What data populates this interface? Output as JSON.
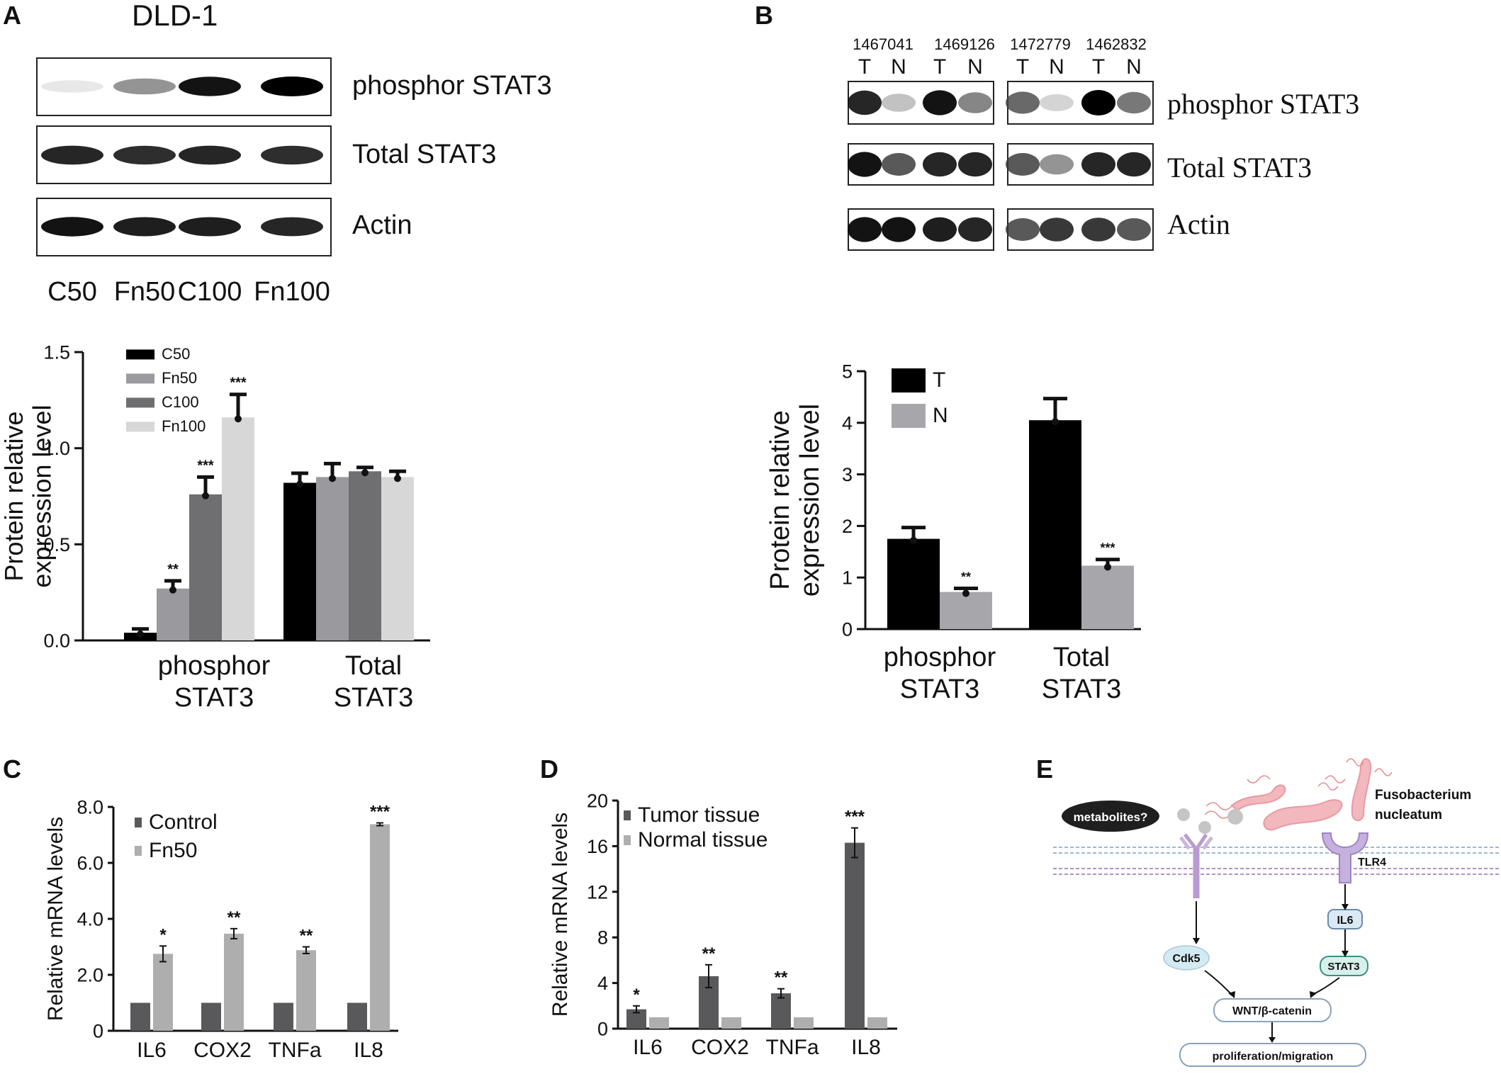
{
  "panels": {
    "A": {
      "label": "A",
      "cell_line": "DLD-1",
      "blot_rows": [
        "phosphor STAT3",
        "Total STAT3",
        "Actin"
      ],
      "lanes": [
        "C50",
        "Fn50",
        "C100",
        "Fn100"
      ],
      "band_intensity": [
        [
          0.12,
          0.55,
          0.95,
          1.0
        ],
        [
          0.9,
          0.88,
          0.9,
          0.88
        ],
        [
          0.95,
          0.92,
          0.92,
          0.9
        ]
      ]
    },
    "B": {
      "label": "B",
      "sample_ids": [
        "1467041",
        "1469126",
        "1472779",
        "1462832"
      ],
      "lane_labels": [
        "T",
        "N",
        "T",
        "N",
        "T",
        "N",
        "T",
        "N"
      ],
      "blot_rows": [
        "phosphor STAT3",
        "Total STAT3",
        "Actin"
      ],
      "band_intensity": [
        [
          0.9,
          0.35,
          0.95,
          0.6,
          0.7,
          0.25,
          1.0,
          0.65
        ],
        [
          0.95,
          0.75,
          0.9,
          0.9,
          0.75,
          0.55,
          0.9,
          0.9
        ],
        [
          0.95,
          0.95,
          0.92,
          0.9,
          0.75,
          0.85,
          0.85,
          0.75
        ]
      ]
    },
    "C": {
      "label": "C"
    },
    "D": {
      "label": "D"
    },
    "E": {
      "label": "E",
      "metabolites": "metabolites?",
      "bacterium": [
        "Fusobacterium",
        "nucleatum"
      ],
      "receptor": "TLR4",
      "nodes": [
        "IL6",
        "Cdk5",
        "STAT3",
        "WNT/β-catenin",
        "proliferation/migration"
      ]
    }
  },
  "chart_data": [
    {
      "id": "A-quant",
      "type": "bar",
      "categories": [
        "phosphor\nSTAT3",
        "Total\nSTAT3"
      ],
      "series": [
        {
          "name": "C50",
          "color": "#000000",
          "values": [
            0.04,
            0.82
          ],
          "errors": [
            0.02,
            0.05
          ],
          "sig": [
            "",
            ""
          ]
        },
        {
          "name": "Fn50",
          "color": "#9a9a9e",
          "values": [
            0.27,
            0.85
          ],
          "errors": [
            0.04,
            0.07
          ],
          "sig": [
            "**",
            ""
          ]
        },
        {
          "name": "C100",
          "color": "#6f6f71",
          "values": [
            0.76,
            0.88
          ],
          "errors": [
            0.09,
            0.02
          ],
          "sig": [
            "***",
            ""
          ]
        },
        {
          "name": "Fn100",
          "color": "#d7d7d8",
          "values": [
            1.16,
            0.85
          ],
          "errors": [
            0.12,
            0.03
          ],
          "sig": [
            "***",
            ""
          ]
        }
      ],
      "ylabel": "Protein relative\nexpression level",
      "yticks": [
        "0.0",
        "0.5",
        "1.0",
        "1.5"
      ],
      "ylim": [
        0,
        1.5
      ],
      "legend": "top-left"
    },
    {
      "id": "B-quant",
      "type": "bar",
      "categories": [
        "phosphor\nSTAT3",
        "Total\nSTAT3"
      ],
      "series": [
        {
          "name": "T",
          "color": "#000000",
          "values": [
            1.75,
            4.05
          ],
          "errors": [
            0.22,
            0.42
          ],
          "sig": [
            "",
            ""
          ]
        },
        {
          "name": "N",
          "color": "#a7a7ab",
          "values": [
            0.72,
            1.23
          ],
          "errors": [
            0.07,
            0.12
          ],
          "sig": [
            "**",
            "***"
          ]
        }
      ],
      "ylabel": "Protein relative\nexpression level",
      "yticks": [
        "0",
        "1",
        "2",
        "3",
        "4",
        "5"
      ],
      "ylim": [
        0,
        5
      ],
      "legend": "top-left"
    },
    {
      "id": "C-mrna",
      "type": "bar",
      "categories": [
        "IL6",
        "COX2",
        "TNFa",
        "IL8"
      ],
      "series": [
        {
          "name": "Control",
          "color": "#59595b",
          "values": [
            1,
            1,
            1,
            1
          ],
          "errors": [
            0,
            0,
            0,
            0
          ],
          "sig": [
            "",
            "",
            "",
            ""
          ]
        },
        {
          "name": "Fn50",
          "color": "#aeaeae",
          "values": [
            2.75,
            3.47,
            2.88,
            7.38
          ],
          "errors": [
            0.28,
            0.18,
            0.12,
            0.05
          ],
          "sig": [
            "*",
            "**",
            "**",
            "***"
          ]
        }
      ],
      "ylabel": "Relative mRNA levels",
      "yticks": [
        "0",
        "2.0",
        "4.0",
        "6.0",
        "8.0"
      ],
      "ylim": [
        0,
        8
      ],
      "legend": "top-left"
    },
    {
      "id": "D-mrna",
      "type": "bar",
      "categories": [
        "IL6",
        "COX2",
        "TNFa",
        "IL8"
      ],
      "series": [
        {
          "name": "Tumor tissue",
          "color": "#59595b",
          "values": [
            1.7,
            4.6,
            3.1,
            16.3
          ],
          "errors": [
            0.3,
            1.0,
            0.4,
            1.3
          ],
          "sig": [
            "*",
            "**",
            "**",
            "***"
          ]
        },
        {
          "name": "Normal tissue",
          "color": "#aeaeae",
          "values": [
            1,
            1,
            1,
            1
          ],
          "errors": [
            0,
            0,
            0,
            0
          ],
          "sig": [
            "",
            "",
            "",
            ""
          ]
        }
      ],
      "ylabel": "Relative mRNA levels",
      "yticks": [
        "0",
        "4",
        "8",
        "12",
        "16",
        "20"
      ],
      "ylim": [
        0,
        20
      ],
      "legend": "top-left"
    }
  ]
}
